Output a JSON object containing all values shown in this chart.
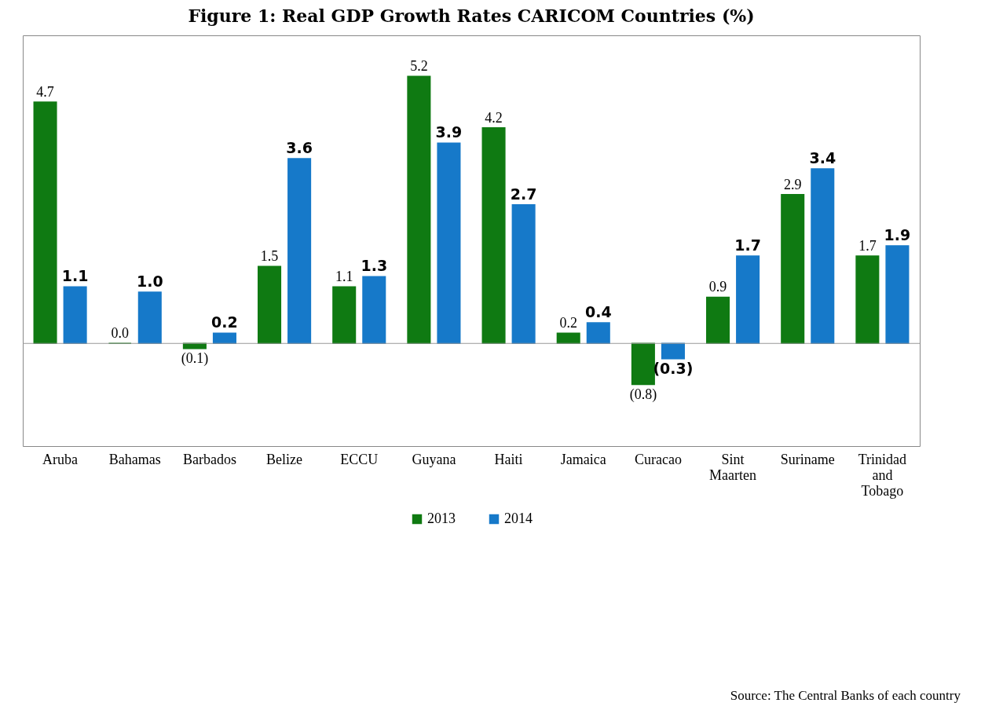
{
  "chart_data": {
    "type": "bar",
    "title": "Figure 1: Real GDP Growth Rates CARICOM Countries (%)",
    "categories": [
      "Aruba",
      "Bahamas",
      "Barbados",
      "Belize",
      "ECCU",
      "Guyana",
      "Haiti",
      "Jamaica",
      "Curacao",
      "Sint Maarten",
      "Suriname",
      "Trinidad and Tobago"
    ],
    "series": [
      {
        "name": "2013",
        "color": "#0f7a12",
        "values": [
          4.7,
          0.0,
          -0.1,
          1.5,
          1.1,
          5.2,
          4.2,
          0.2,
          -0.8,
          0.9,
          2.9,
          1.7
        ],
        "value_labels": [
          "4.7",
          "0.0",
          "(0.1)",
          "1.5",
          "1.1",
          "5.2",
          "4.2",
          "0.2",
          "(0.8)",
          "0.9",
          "2.9",
          "1.7"
        ]
      },
      {
        "name": "2014",
        "color": "#1679c9",
        "values": [
          1.1,
          1.0,
          0.2,
          3.6,
          1.3,
          3.9,
          2.7,
          0.4,
          -0.3,
          1.7,
          3.4,
          1.9
        ],
        "value_labels": [
          "1.1",
          "1.0",
          "0.2",
          "3.6",
          "1.3",
          "3.9",
          "2.7",
          "0.4",
          "(0.3)",
          "1.7",
          "3.4",
          "1.9"
        ]
      }
    ],
    "ylim": [
      -2,
      6
    ],
    "legend": "bottom",
    "annotations": [
      "Source:  The Central Banks of each country"
    ]
  }
}
